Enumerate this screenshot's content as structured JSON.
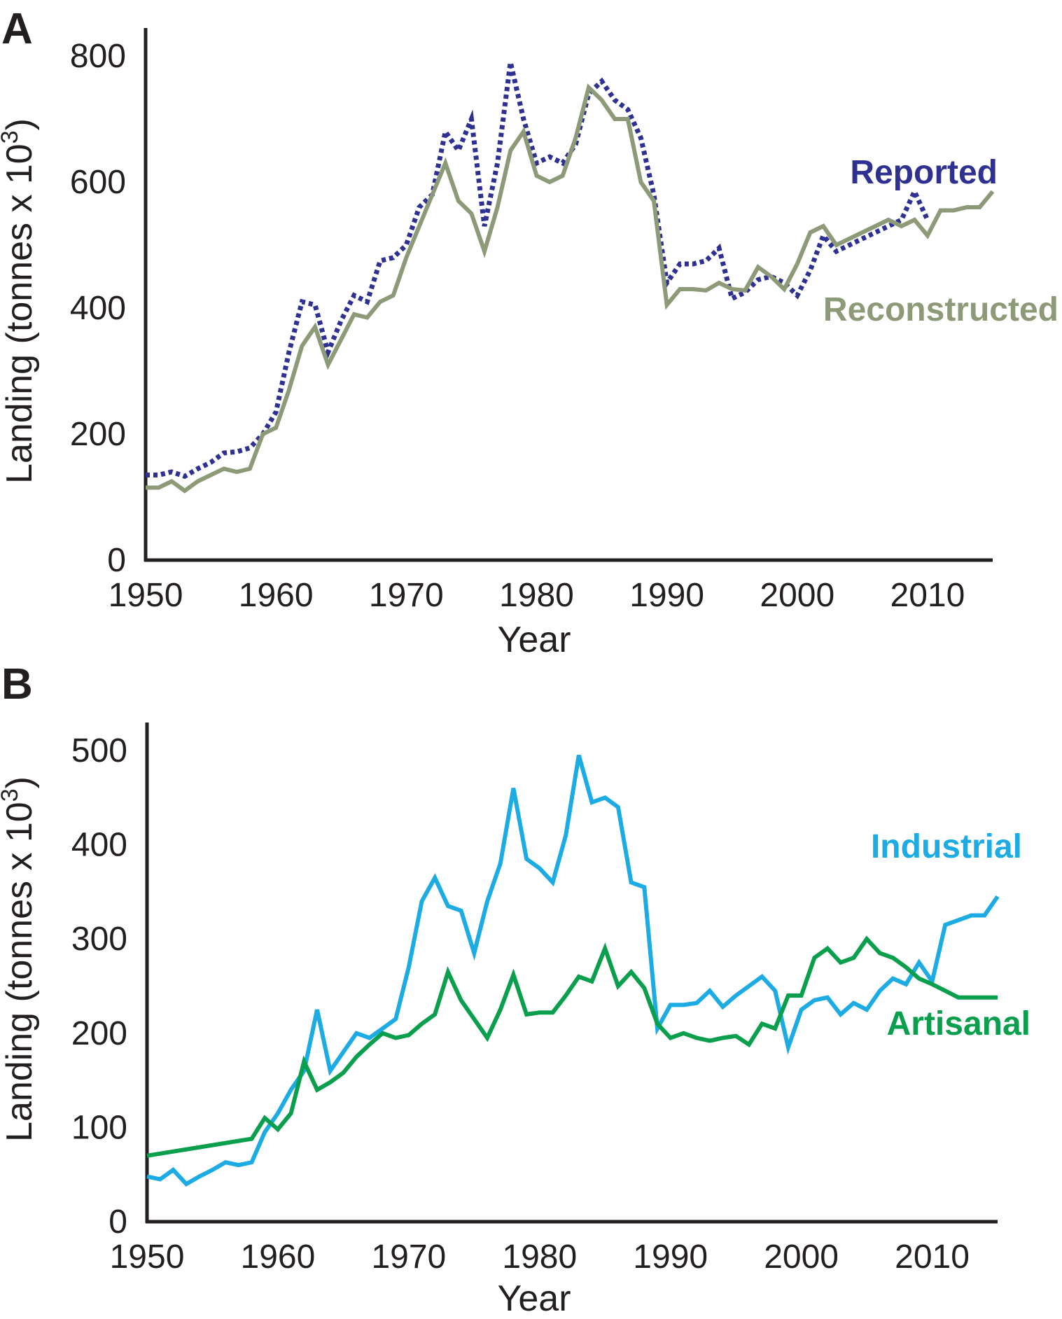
{
  "chart_data": [
    {
      "panel": "A",
      "type": "line",
      "xlabel": "Year",
      "ylabel": "Landing (tonnes x 10",
      "ylabel_sup": "3",
      "ylabel_close": ")",
      "xlim": [
        1950,
        2015
      ],
      "ylim": [
        0,
        800
      ],
      "xticks": [
        1950,
        1960,
        1970,
        1980,
        1990,
        2000,
        2010
      ],
      "yticks": [
        0,
        200,
        400,
        600,
        800
      ],
      "grid": false,
      "series": [
        {
          "name": "Reported",
          "color": "#2e3192",
          "style": "dotted",
          "x": [
            1950,
            1951,
            1952,
            1953,
            1954,
            1955,
            1956,
            1957,
            1958,
            1959,
            1960,
            1961,
            1962,
            1963,
            1964,
            1965,
            1966,
            1967,
            1968,
            1969,
            1970,
            1971,
            1972,
            1973,
            1974,
            1975,
            1976,
            1977,
            1978,
            1979,
            1980,
            1981,
            1982,
            1983,
            1984,
            1985,
            1986,
            1987,
            1988,
            1989,
            1990,
            1991,
            1992,
            1993,
            1994,
            1995,
            1996,
            1997,
            1998,
            1999,
            2000,
            2001,
            2002,
            2003,
            2004,
            2005,
            2006,
            2007,
            2008,
            2009,
            2010
          ],
          "y": [
            135,
            135,
            140,
            133,
            145,
            155,
            170,
            172,
            178,
            200,
            235,
            330,
            410,
            405,
            330,
            380,
            420,
            410,
            475,
            480,
            500,
            560,
            580,
            680,
            650,
            700,
            530,
            630,
            790,
            700,
            630,
            640,
            630,
            660,
            740,
            760,
            730,
            715,
            670,
            580,
            440,
            470,
            470,
            475,
            495,
            415,
            425,
            445,
            450,
            440,
            420,
            460,
            515,
            490,
            500,
            510,
            520,
            530,
            540,
            585,
            540
          ]
        },
        {
          "name": "Reconstructed",
          "color": "#8c9a78",
          "style": "solid",
          "x": [
            1950,
            1951,
            1952,
            1953,
            1954,
            1955,
            1956,
            1957,
            1958,
            1959,
            1960,
            1961,
            1962,
            1963,
            1964,
            1965,
            1966,
            1967,
            1968,
            1969,
            1970,
            1971,
            1972,
            1973,
            1974,
            1975,
            1976,
            1977,
            1978,
            1979,
            1980,
            1981,
            1982,
            1983,
            1984,
            1985,
            1986,
            1987,
            1988,
            1989,
            1990,
            1991,
            1992,
            1993,
            1994,
            1995,
            1996,
            1997,
            1998,
            1999,
            2000,
            2001,
            2002,
            2003,
            2004,
            2005,
            2006,
            2007,
            2008,
            2009,
            2010,
            2011,
            2012,
            2013,
            2014,
            2015
          ],
          "y": [
            115,
            115,
            125,
            110,
            125,
            135,
            145,
            140,
            145,
            200,
            210,
            270,
            340,
            370,
            310,
            350,
            390,
            385,
            410,
            420,
            480,
            530,
            580,
            630,
            570,
            550,
            490,
            560,
            650,
            680,
            610,
            600,
            610,
            670,
            750,
            730,
            700,
            700,
            600,
            570,
            405,
            430,
            430,
            428,
            440,
            430,
            428,
            465,
            450,
            430,
            470,
            520,
            530,
            500,
            510,
            520,
            530,
            540,
            530,
            540,
            515,
            555,
            555,
            560,
            560,
            585
          ]
        }
      ]
    },
    {
      "panel": "B",
      "type": "line",
      "xlabel": "Year",
      "ylabel": "Landing (tonnes x 10",
      "ylabel_sup": "3",
      "ylabel_close": ")",
      "xlim": [
        1950,
        2015
      ],
      "ylim": [
        0,
        500
      ],
      "xticks": [
        1950,
        1960,
        1970,
        1980,
        1990,
        2000,
        2010
      ],
      "yticks": [
        0,
        100,
        200,
        300,
        400,
        500
      ],
      "grid": false,
      "series": [
        {
          "name": "Industrial",
          "color": "#1cabe2",
          "style": "solid",
          "x": [
            1950,
            1951,
            1952,
            1953,
            1954,
            1955,
            1956,
            1957,
            1958,
            1959,
            1960,
            1961,
            1962,
            1963,
            1964,
            1965,
            1966,
            1967,
            1968,
            1969,
            1970,
            1971,
            1972,
            1973,
            1974,
            1975,
            1976,
            1977,
            1978,
            1979,
            1980,
            1981,
            1982,
            1983,
            1984,
            1985,
            1986,
            1987,
            1988,
            1989,
            1990,
            1991,
            1992,
            1993,
            1994,
            1995,
            1996,
            1997,
            1998,
            1999,
            2000,
            2001,
            2002,
            2003,
            2004,
            2005,
            2006,
            2007,
            2008,
            2009,
            2010,
            2011,
            2012,
            2013,
            2014,
            2015
          ],
          "y": [
            48,
            45,
            55,
            40,
            48,
            55,
            63,
            60,
            63,
            95,
            115,
            140,
            160,
            225,
            160,
            180,
            200,
            195,
            205,
            215,
            270,
            340,
            365,
            335,
            330,
            285,
            340,
            380,
            460,
            385,
            375,
            360,
            410,
            495,
            445,
            450,
            440,
            360,
            355,
            205,
            230,
            230,
            232,
            245,
            228,
            240,
            250,
            260,
            245,
            185,
            225,
            235,
            238,
            220,
            232,
            225,
            245,
            258,
            252,
            275,
            255,
            315,
            320,
            325,
            325,
            345
          ]
        },
        {
          "name": "Artisanal",
          "color": "#0a9f4d",
          "style": "solid",
          "x": [
            1950,
            1958,
            1959,
            1960,
            1961,
            1962,
            1963,
            1964,
            1965,
            1966,
            1967,
            1968,
            1969,
            1970,
            1971,
            1972,
            1973,
            1974,
            1975,
            1976,
            1977,
            1978,
            1979,
            1980,
            1981,
            1982,
            1983,
            1984,
            1985,
            1986,
            1987,
            1988,
            1989,
            1990,
            1991,
            1992,
            1993,
            1994,
            1995,
            1996,
            1997,
            1998,
            1999,
            2000,
            2001,
            2002,
            2003,
            2004,
            2005,
            2006,
            2007,
            2008,
            2009,
            2010,
            2011,
            2012,
            2013,
            2014,
            2015
          ],
          "y": [
            70,
            88,
            110,
            98,
            115,
            170,
            140,
            148,
            158,
            175,
            188,
            200,
            195,
            198,
            210,
            220,
            265,
            235,
            215,
            195,
            225,
            262,
            220,
            222,
            222,
            240,
            260,
            255,
            290,
            250,
            265,
            248,
            210,
            195,
            200,
            195,
            192,
            195,
            197,
            188,
            210,
            205,
            240,
            240,
            280,
            290,
            275,
            280,
            300,
            285,
            280,
            270,
            258,
            252,
            245,
            238,
            238,
            238,
            238
          ]
        }
      ]
    }
  ]
}
